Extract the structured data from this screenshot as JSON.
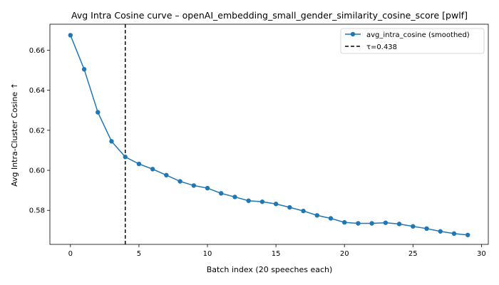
{
  "chart_data": {
    "type": "line",
    "title": "Avg Intra Cosine curve – openAI_embedding_small_gender_similarity_cosine_score [pwlf]",
    "xlabel": "Batch index (20 speeches each)",
    "ylabel": "Avg Intra-Cluster Cosine ↑",
    "xlim": [
      -1.5,
      30.5
    ],
    "ylim": [
      0.563,
      0.673
    ],
    "xticks": [
      0,
      5,
      10,
      15,
      20,
      25,
      30
    ],
    "yticks": [
      0.58,
      0.6,
      0.62,
      0.64,
      0.66
    ],
    "ytick_labels": [
      "0.58",
      "0.60",
      "0.62",
      "0.64",
      "0.66"
    ],
    "grid": false,
    "legend_position": "top-right",
    "series": [
      {
        "name": "avg_intra_cosine (smoothed)",
        "color": "#1f77b4",
        "style": "line-with-markers",
        "x": [
          0,
          1,
          2,
          3,
          4,
          5,
          6,
          7,
          8,
          9,
          10,
          11,
          12,
          13,
          14,
          15,
          16,
          17,
          18,
          19,
          20,
          21,
          22,
          23,
          24,
          25,
          26,
          27,
          28,
          29
        ],
        "y": [
          0.6675,
          0.6505,
          0.629,
          0.6145,
          0.6067,
          0.6032,
          0.6006,
          0.5976,
          0.5945,
          0.5924,
          0.5911,
          0.5885,
          0.5867,
          0.5848,
          0.5843,
          0.5832,
          0.5815,
          0.5797,
          0.5775,
          0.576,
          0.574,
          0.5735,
          0.5735,
          0.5738,
          0.5732,
          0.572,
          0.5709,
          0.5695,
          0.5684,
          0.5677
        ]
      }
    ],
    "threshold": {
      "name": "τ=0.438",
      "x": 4,
      "color": "#000000",
      "style": "dashed"
    }
  }
}
